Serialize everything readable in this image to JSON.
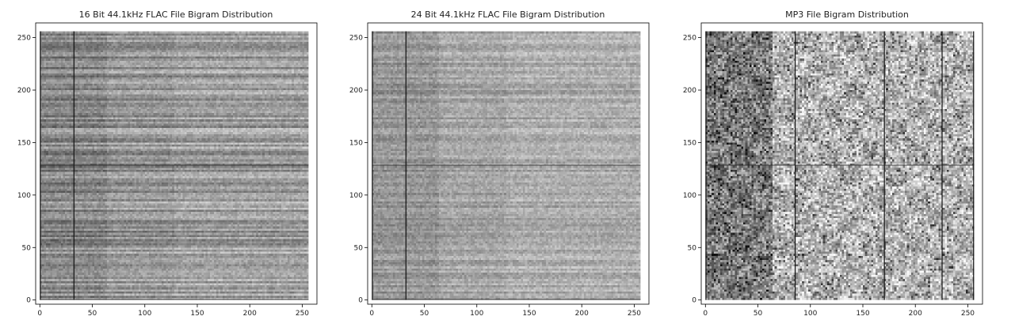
{
  "chart_data": [
    {
      "type": "heatmap",
      "title": "16 Bit 44.1kHz FLAC File Bigram Distribution",
      "xlim": [
        -4,
        264
      ],
      "ylim": [
        -4,
        264
      ],
      "xticks": [
        0,
        50,
        100,
        150,
        200,
        250
      ],
      "yticks": [
        0,
        50,
        100,
        150,
        200,
        250
      ],
      "grid": false,
      "colormap": "greys",
      "matrix_size": [
        256,
        256
      ],
      "dark_columns": [
        0,
        32
      ],
      "dark_rows": [
        0,
        128
      ]
    },
    {
      "type": "heatmap",
      "title": "24 Bit 44.1kHz FLAC File Bigram Distribution",
      "xlim": [
        -4,
        264
      ],
      "ylim": [
        -4,
        264
      ],
      "xticks": [
        0,
        50,
        100,
        150,
        200,
        250
      ],
      "yticks": [
        0,
        50,
        100,
        150,
        200,
        250
      ],
      "grid": false,
      "colormap": "greys",
      "matrix_size": [
        256,
        256
      ],
      "dark_columns": [
        0,
        32
      ],
      "dark_rows": [
        0,
        128
      ]
    },
    {
      "type": "heatmap",
      "title": "MP3 File Bigram Distribution",
      "xlim": [
        -4,
        264
      ],
      "ylim": [
        -4,
        264
      ],
      "xticks": [
        0,
        50,
        100,
        150,
        200,
        250
      ],
      "yticks": [
        0,
        50,
        100,
        150,
        200,
        250
      ],
      "grid": false,
      "colormap": "greys",
      "matrix_size": [
        256,
        256
      ],
      "dark_columns": [
        0,
        85,
        170,
        225,
        255
      ],
      "dark_rows": [
        128
      ]
    }
  ]
}
